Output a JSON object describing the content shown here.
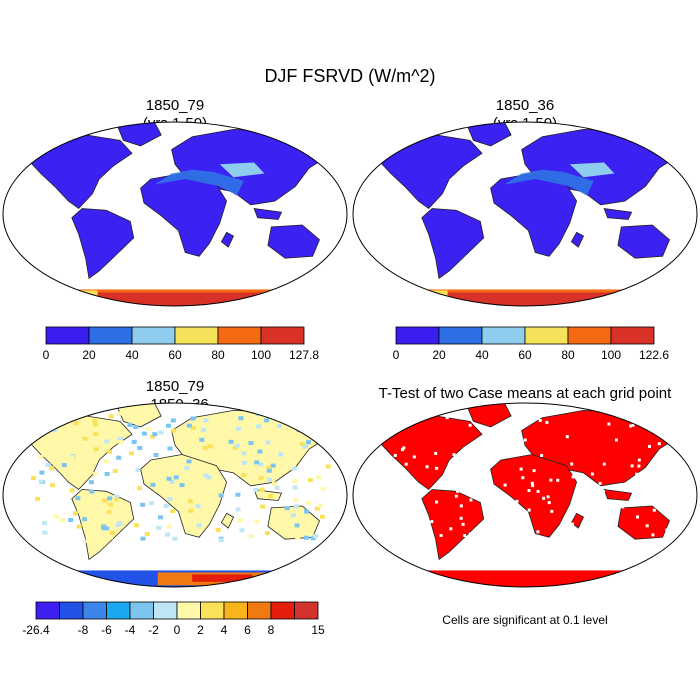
{
  "chart_data": [
    {
      "type": "heatmap",
      "title": "DJF FSRVD (W/m^2)",
      "subtitle": "1850_79",
      "subtitle_line2": "(yrs 1-50)",
      "colorbar": {
        "tick_labels": [
          "0",
          "20",
          "40",
          "60",
          "80",
          "100",
          "127.8"
        ],
        "bounds": [
          0,
          20,
          40,
          60,
          80,
          100,
          127.8
        ],
        "colors": [
          "#3a1ef0",
          "#2f6fe6",
          "#8fcdee",
          "#f6e15a",
          "#f56a10",
          "#d83228"
        ]
      },
      "colors": {
        "land": "#3b22f2",
        "ocean": "#ffffff",
        "sahara": "#2f78e6",
        "antarctic_high": "#d83228",
        "antarctic_mid": "#f56a10"
      }
    },
    {
      "type": "heatmap",
      "subtitle": "1850_36",
      "subtitle_line2": "(yrs 1-50)",
      "colorbar": {
        "tick_labels": [
          "0",
          "20",
          "40",
          "60",
          "80",
          "100",
          "122.6"
        ],
        "bounds": [
          0,
          20,
          40,
          60,
          80,
          100,
          122.6
        ],
        "colors": [
          "#3a1ef0",
          "#2f6fe6",
          "#8fcdee",
          "#f6e15a",
          "#f56a10",
          "#d83228"
        ]
      }
    },
    {
      "type": "heatmap",
      "subtitle": "1850_79",
      "subtitle_line2": "- 1850_36",
      "colorbar": {
        "tick_labels": [
          "-26.4",
          "-8",
          "-6",
          "-4",
          "-2",
          "0",
          "2",
          "4",
          "6",
          "8",
          "15"
        ],
        "bounds": [
          -26.4,
          -10,
          -8,
          -6,
          -4,
          -2,
          0,
          2,
          4,
          6,
          8,
          10,
          15
        ],
        "tick_indices": [
          0,
          2,
          3,
          4,
          5,
          6,
          7,
          8,
          9,
          10,
          12
        ],
        "colors": [
          "#3d1ff2",
          "#2352e8",
          "#3c86ea",
          "#19a7f0",
          "#7bc5ee",
          "#bfe6f4",
          "#fff8a8",
          "#f9e25a",
          "#f7b51b",
          "#f07a12",
          "#e51d0c",
          "#d3332c"
        ]
      },
      "colors": {
        "land_mix": [
          "#bfe6f4",
          "#fff8a8",
          "#f9e25a",
          "#7bc5ee"
        ]
      }
    },
    {
      "type": "heatmap",
      "subtitle": "T-Test of two Case means at each grid point",
      "footnote": "Cells are significant at 0.1 level",
      "colors": {
        "significant": "#ff0000"
      }
    }
  ]
}
